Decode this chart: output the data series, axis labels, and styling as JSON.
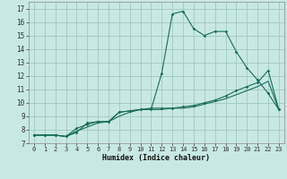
{
  "xlabel": "Humidex (Indice chaleur)",
  "ylabel": "",
  "background_color": "#c8e8e4",
  "grid_color": "#a0c8c4",
  "line_color": "#1a6b5a",
  "xlim": [
    -0.5,
    23.5
  ],
  "ylim": [
    7,
    17.5
  ],
  "xticks": [
    0,
    1,
    2,
    3,
    4,
    5,
    6,
    7,
    8,
    9,
    10,
    11,
    12,
    13,
    14,
    15,
    16,
    17,
    18,
    19,
    20,
    21,
    22,
    23
  ],
  "yticks": [
    7,
    8,
    9,
    10,
    11,
    12,
    13,
    14,
    15,
    16,
    17
  ],
  "line1_x": [
    0,
    1,
    2,
    3,
    4,
    5,
    6,
    7,
    8,
    9,
    10,
    11,
    12,
    13,
    14,
    15,
    16,
    17,
    18,
    19,
    20,
    21,
    22,
    23
  ],
  "line1_y": [
    7.6,
    7.6,
    7.6,
    7.5,
    7.8,
    8.5,
    8.6,
    8.6,
    9.3,
    9.4,
    9.5,
    9.5,
    12.2,
    16.6,
    16.8,
    15.5,
    15.0,
    15.3,
    15.3,
    13.8,
    12.6,
    11.7,
    10.7,
    9.5
  ],
  "line2_x": [
    0,
    1,
    2,
    3,
    4,
    5,
    6,
    7,
    8,
    9,
    10,
    11,
    12,
    13,
    14,
    15,
    16,
    17,
    18,
    19,
    20,
    21,
    22,
    23
  ],
  "line2_y": [
    7.6,
    7.6,
    7.6,
    7.5,
    8.1,
    8.4,
    8.6,
    8.6,
    9.3,
    9.4,
    9.5,
    9.6,
    9.6,
    9.6,
    9.7,
    9.8,
    10.0,
    10.2,
    10.5,
    10.9,
    11.2,
    11.5,
    12.4,
    9.5
  ],
  "line3_x": [
    0,
    1,
    2,
    3,
    4,
    5,
    6,
    7,
    8,
    9,
    10,
    11,
    12,
    13,
    14,
    15,
    16,
    17,
    18,
    19,
    20,
    21,
    22,
    23
  ],
  "line3_y": [
    7.6,
    7.6,
    7.6,
    7.5,
    7.9,
    8.2,
    8.5,
    8.6,
    9.0,
    9.3,
    9.5,
    9.5,
    9.5,
    9.6,
    9.6,
    9.7,
    9.9,
    10.1,
    10.3,
    10.6,
    10.9,
    11.2,
    11.6,
    9.5
  ]
}
